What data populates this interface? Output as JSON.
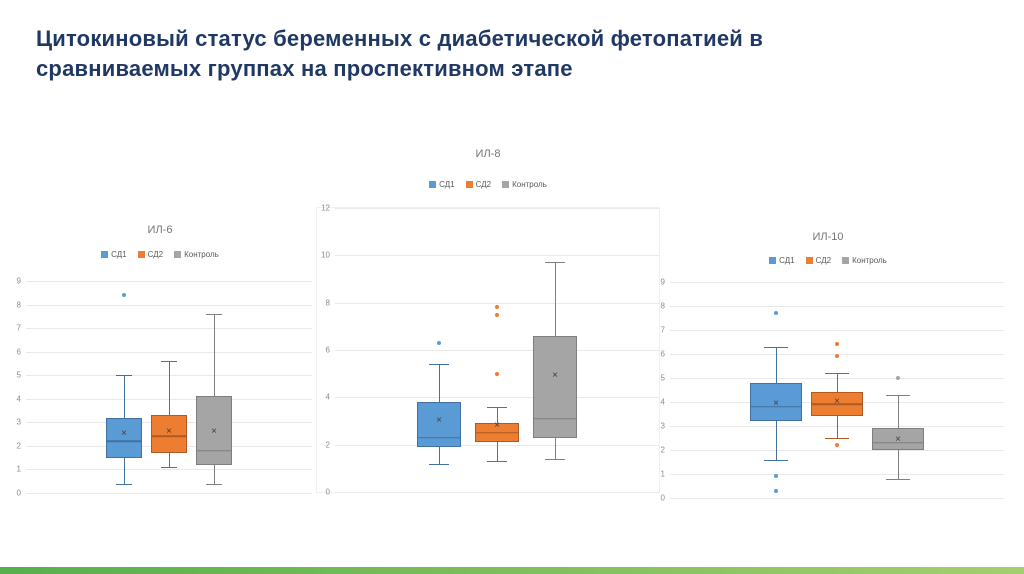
{
  "slide": {
    "title": "Цитокиновый статус беременных с диабетической фетопатией в сравниваемых группах на проспективном этапе",
    "title_color": "#1f3864",
    "accent_bar": {
      "color_left": "#56b04c",
      "color_right": "#a6ce6e"
    }
  },
  "chart_data": [
    {
      "type": "boxplot",
      "title": "ИЛ-6",
      "ylim": [
        0,
        9
      ],
      "ytick_step": 1,
      "grid": true,
      "legend_position": "top",
      "series": [
        {
          "name": "СД1",
          "fill": "#5b9bd5",
          "border": "#41719c",
          "whisker_low": 0.4,
          "q1": 1.5,
          "median": 2.2,
          "mean": 2.5,
          "q3": 3.2,
          "whisker_high": 5.0,
          "outliers": [
            8.4
          ]
        },
        {
          "name": "СД2",
          "fill": "#ed7d31",
          "border": "#ae5a21",
          "whisker_low": 1.1,
          "q1": 1.7,
          "median": 2.4,
          "mean": 2.6,
          "q3": 3.3,
          "whisker_high": 5.6,
          "outliers": []
        },
        {
          "name": "Контроль",
          "fill": "#a5a5a5",
          "border": "#7f7f7f",
          "whisker_low": 0.4,
          "q1": 1.2,
          "median": 1.8,
          "mean": 2.6,
          "q3": 4.1,
          "whisker_high": 7.6,
          "outliers": []
        }
      ]
    },
    {
      "type": "boxplot",
      "title": "ИЛ-8",
      "ylim": [
        0,
        12
      ],
      "ytick_step": 2,
      "grid": true,
      "legend_position": "top",
      "series": [
        {
          "name": "СД1",
          "fill": "#5b9bd5",
          "border": "#41719c",
          "whisker_low": 1.2,
          "q1": 1.9,
          "median": 2.3,
          "mean": 3.0,
          "q3": 3.8,
          "whisker_high": 5.4,
          "outliers": [
            6.3
          ]
        },
        {
          "name": "СД2",
          "fill": "#ed7d31",
          "border": "#ae5a21",
          "whisker_low": 1.3,
          "q1": 2.1,
          "median": 2.5,
          "mean": 2.8,
          "q3": 2.9,
          "whisker_high": 3.6,
          "outliers": [
            5.0,
            7.5,
            7.8
          ]
        },
        {
          "name": "Контроль",
          "fill": "#a5a5a5",
          "border": "#7f7f7f",
          "whisker_low": 1.4,
          "q1": 2.3,
          "median": 3.1,
          "mean": 4.9,
          "q3": 6.6,
          "whisker_high": 9.7,
          "outliers": []
        }
      ]
    },
    {
      "type": "boxplot",
      "title": "ИЛ-10",
      "ylim": [
        0,
        9
      ],
      "ytick_step": 1,
      "grid": true,
      "legend_position": "top",
      "series": [
        {
          "name": "СД1",
          "fill": "#5b9bd5",
          "border": "#41719c",
          "whisker_low": 1.6,
          "q1": 3.2,
          "median": 3.8,
          "mean": 3.9,
          "q3": 4.8,
          "whisker_high": 6.3,
          "outliers": [
            7.7,
            0.9,
            0.3
          ]
        },
        {
          "name": "СД2",
          "fill": "#ed7d31",
          "border": "#ae5a21",
          "whisker_low": 2.5,
          "q1": 3.4,
          "median": 3.9,
          "mean": 4.0,
          "q3": 4.4,
          "whisker_high": 5.2,
          "outliers": [
            6.4,
            5.9,
            2.2
          ]
        },
        {
          "name": "Контроль",
          "fill": "#a5a5a5",
          "border": "#7f7f7f",
          "whisker_low": 0.8,
          "q1": 2.0,
          "median": 2.3,
          "mean": 2.4,
          "q3": 2.9,
          "whisker_high": 4.3,
          "outliers": [
            5.0
          ]
        }
      ]
    }
  ]
}
